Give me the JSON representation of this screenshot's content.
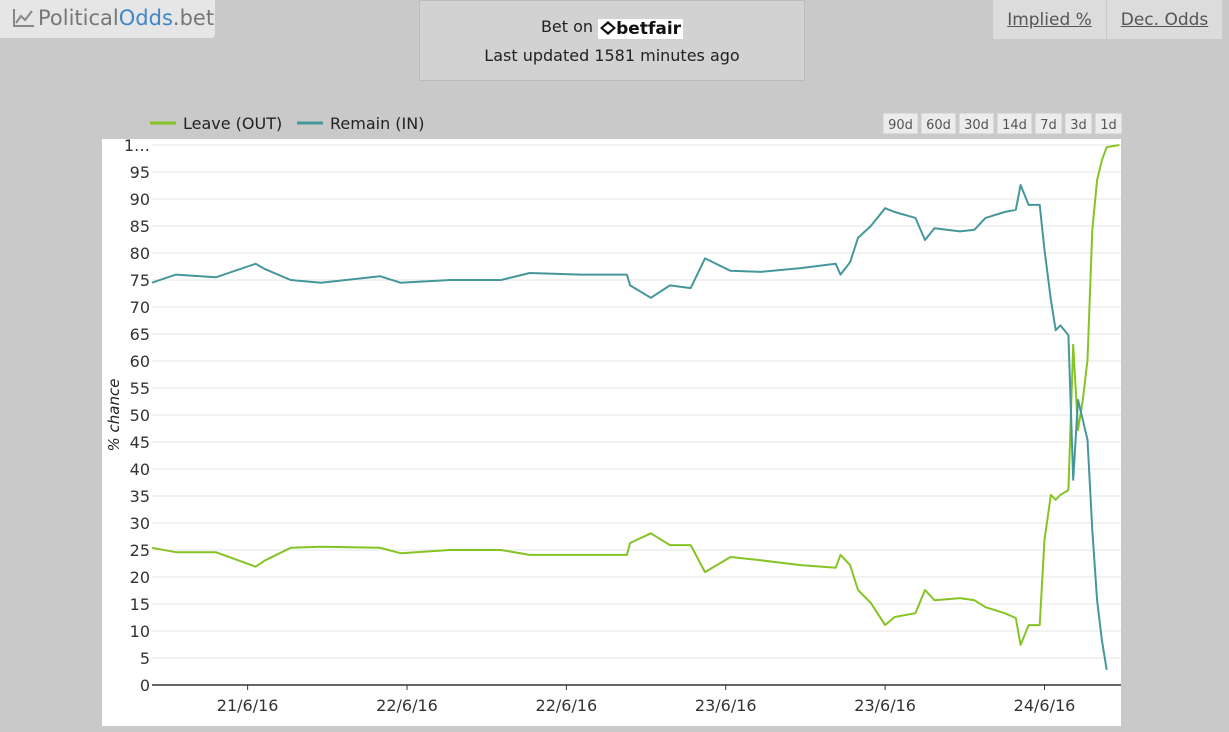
{
  "header": {
    "logo": {
      "part1": "Political",
      "part2": "Odds",
      "part3": ".bet"
    },
    "bet_on": "Bet on",
    "bookmaker": "betfair",
    "last_updated": "Last updated 1581 minutes ago",
    "tabs": [
      "Implied %",
      "Dec. Odds"
    ]
  },
  "range_buttons": [
    "90d",
    "60d",
    "30d",
    "14d",
    "7d",
    "3d",
    "1d"
  ],
  "chart_data": {
    "type": "line",
    "y_label": "% chance",
    "x": [
      -0.6,
      -0.45,
      -0.2,
      0.05,
      0.11,
      0.27,
      0.46,
      0.83,
      0.96,
      1.27,
      1.59,
      1.77,
      2.09,
      2.38,
      2.4,
      2.53,
      2.65,
      2.78,
      2.87,
      3.03,
      3.22,
      3.47,
      3.69,
      3.72,
      3.78,
      3.83,
      3.91,
      4.0,
      4.06,
      4.19,
      4.25,
      4.31,
      4.47,
      4.56,
      4.63,
      4.75,
      4.82,
      4.85,
      4.9,
      4.97,
      5.0,
      5.04,
      5.07,
      5.1,
      5.15,
      5.18,
      5.21,
      5.24,
      5.27,
      5.3,
      5.33,
      5.36,
      5.39,
      5.47
    ],
    "series": [
      {
        "name": "Leave (OUT)",
        "color": "#86c425",
        "values": [
          25.4,
          24.6,
          24.6,
          21.9,
          23.1,
          25.4,
          25.6,
          25.4,
          24.4,
          25,
          25,
          24.1,
          24.1,
          24.1,
          26.3,
          28.1,
          25.9,
          25.9,
          20.9,
          23.7,
          23.1,
          22.2,
          21.7,
          24.1,
          22.2,
          17.6,
          15.2,
          11.1,
          12.6,
          13.3,
          17.6,
          15.7,
          16.1,
          15.7,
          14.4,
          13.3,
          12.4,
          7.4,
          11.1,
          11.1,
          26.9,
          35.2,
          34.3,
          35.2,
          36.1,
          63,
          47.2,
          52.8,
          60.2,
          84.3,
          93.5,
          97.2,
          99.6,
          100
        ]
      },
      {
        "name": "Remain (IN)",
        "color": "#45979c",
        "values": [
          74.5,
          76,
          75.5,
          78,
          77,
          75,
          74.5,
          75.7,
          74.5,
          75,
          75,
          76.3,
          76,
          76,
          74,
          71.7,
          74,
          73.5,
          79,
          76.7,
          76.5,
          77.2,
          78,
          76,
          78.3,
          82.8,
          85,
          88.3,
          87.6,
          86.5,
          82.4,
          84.6,
          84,
          84.3,
          86.5,
          87.6,
          88,
          92.6,
          88.9,
          88.9,
          80.6,
          71.3,
          65.7,
          66.6,
          64.8,
          38,
          52.8,
          49.1,
          45.4,
          28.7,
          15.7,
          8.3,
          2.8,
          null
        ]
      }
    ],
    "xlim": [
      -0.6,
      5.48
    ],
    "xticks": [
      {
        "value": 0,
        "label": "21/6/16"
      },
      {
        "value": 1,
        "label": "22/6/16"
      },
      {
        "value": 2,
        "label": "22/6/16"
      },
      {
        "value": 3,
        "label": "23/6/16"
      },
      {
        "value": 4,
        "label": "23/6/16"
      },
      {
        "value": 5,
        "label": "24/6/16"
      }
    ],
    "ylim": [
      0,
      100
    ],
    "yticks": [
      0,
      5,
      10,
      15,
      20,
      25,
      30,
      35,
      40,
      45,
      50,
      55,
      60,
      65,
      70,
      75,
      80,
      85,
      90,
      95,
      {
        "value": 100,
        "label": "1…"
      }
    ],
    "grid": true
  }
}
